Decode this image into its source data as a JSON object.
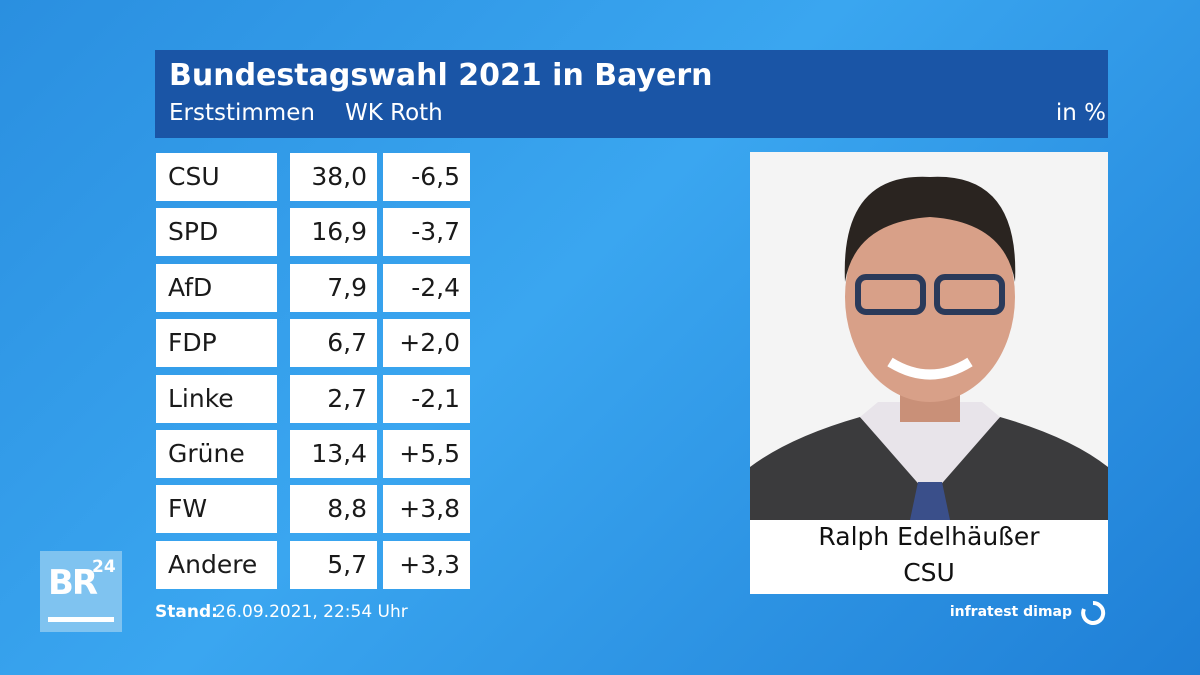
{
  "header": {
    "title": "Bundestagswahl 2021 in Bayern",
    "subtitle": "Erststimmen",
    "district": "WK Roth",
    "unit": "in %"
  },
  "table": {
    "rows": [
      [
        "CSU",
        "38,0",
        "-6,5"
      ],
      [
        "SPD",
        "16,9",
        "-3,7"
      ],
      [
        "AfD",
        "7,9",
        "-2,4"
      ],
      [
        "FDP",
        "6,7",
        "+2,0"
      ],
      [
        "Linke",
        "2,7",
        "-2,1"
      ],
      [
        "Grüne",
        "13,4",
        "+5,5"
      ],
      [
        "FW",
        "8,8",
        "+3,8"
      ],
      [
        "Andere",
        "5,7",
        "+3,3"
      ]
    ]
  },
  "candidate": {
    "name": "Ralph Edelhäußer",
    "party": "CSU"
  },
  "footer": {
    "stand_label": "Stand:",
    "stand": "26.09.2021, 22:54 Uhr",
    "source": "infratest dimap"
  },
  "logo": {
    "brand": "BR",
    "number": "24"
  }
}
